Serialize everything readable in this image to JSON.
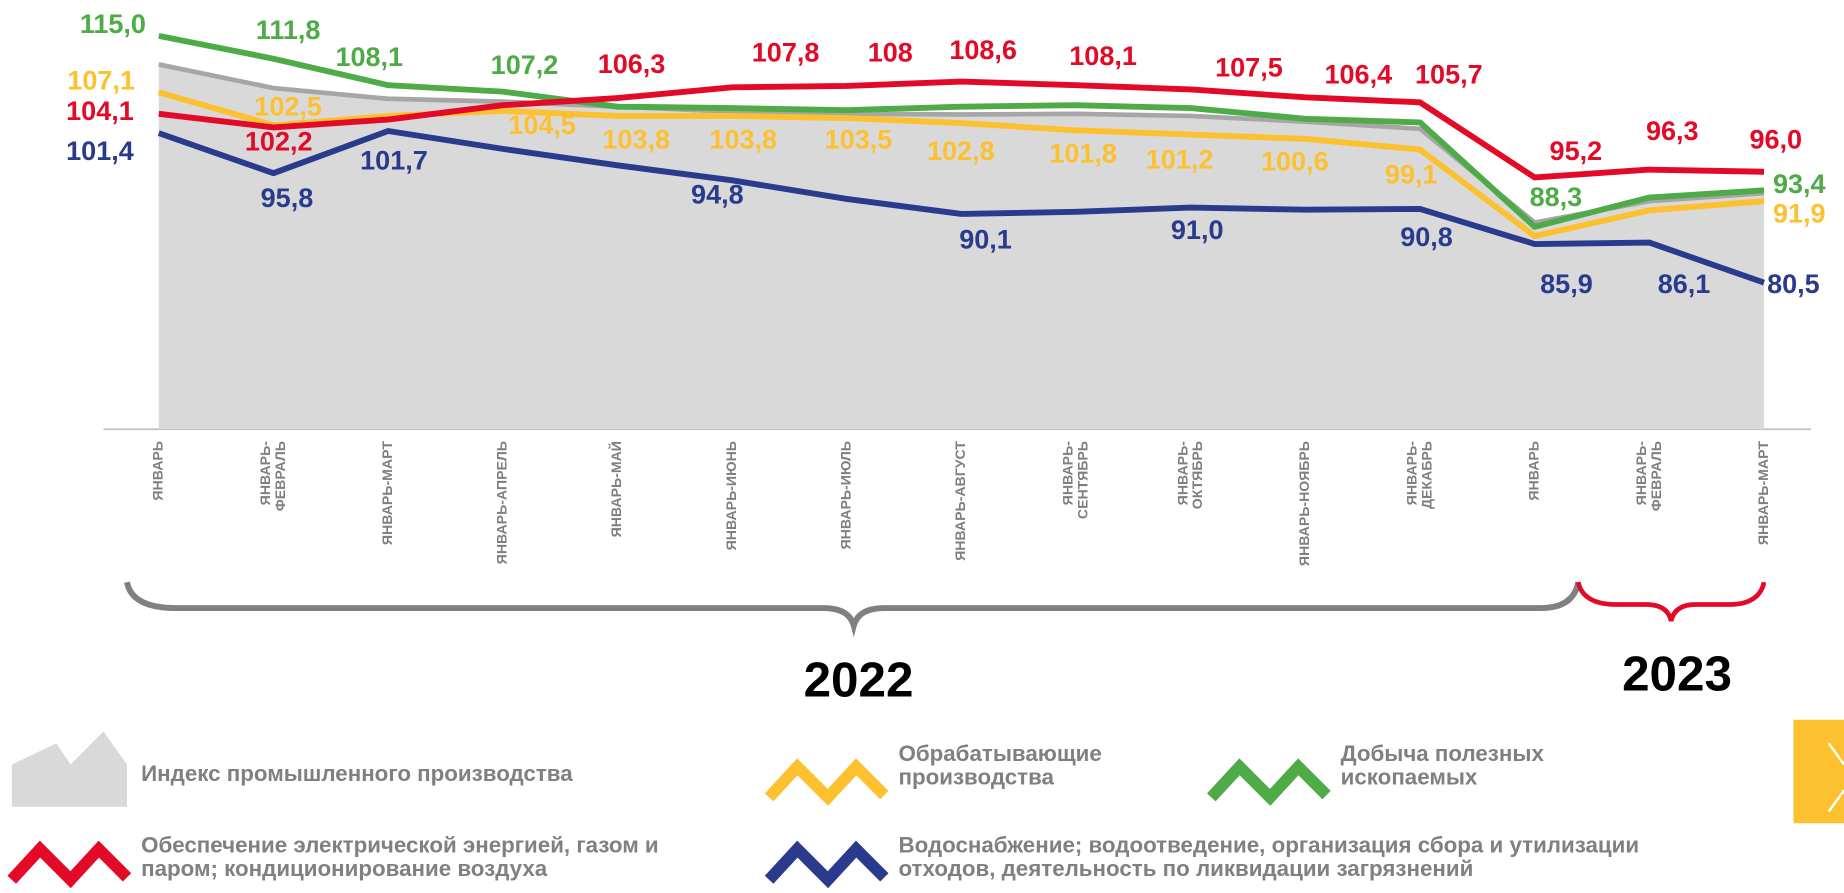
{
  "chart_data": {
    "type": "line",
    "categories": [
      "ЯНВАРЬ",
      "ЯНВАРЬ-\nФЕВРАЛЬ",
      "ЯНВАРЬ-МАРТ",
      "ЯНВАРЬ-АПРЕЛЬ",
      "ЯНВАРЬ-МАЙ",
      "ЯНВАРЬ-ИЮНЬ",
      "ЯНВАРЬ-ИЮЛЬ",
      "ЯНВАРЬ-АВГУСТ",
      "ЯНВАРЬ-\nСЕНТЯБРЬ",
      "ЯНВАРЬ-\nОКТЯБРЬ",
      "ЯНВАРЬ-НОЯБРЬ",
      "ЯНВАРЬ-\nДЕКАБРЬ",
      "ЯНВАРЬ",
      "ЯНВАРЬ-\nФЕВРАЛЬ",
      "ЯНВАРЬ-МАРТ"
    ],
    "ylim": [
      60,
      120
    ],
    "series": [
      {
        "name": "Индекс промышленного производства",
        "color": "#a6a6a6",
        "fill": "#d9d9d9",
        "values": [
          111.0,
          107.7,
          106.2,
          105.8,
          105.1,
          104.4,
          104.1,
          104.0,
          104.1,
          103.8,
          103.0,
          102.0,
          88.9,
          91.9,
          93.0
        ]
      },
      {
        "name": "Обрабатывающие\nпроизводства",
        "color": "#fdc12f",
        "values": [
          107.1,
          102.5,
          103.8,
          104.5,
          103.8,
          103.8,
          103.5,
          102.8,
          101.8,
          101.2,
          100.6,
          99.1,
          87.0,
          90.6,
          91.9
        ],
        "value_labels": [
          "107,1",
          "102,5",
          null,
          "104,5",
          "103,8",
          "103,8",
          "103,5",
          "102,8",
          "101,8",
          "101,2",
          "100,6",
          "99,1",
          null,
          null,
          "91,9"
        ]
      },
      {
        "name": "Добыча полезных\nископаемых",
        "color": "#4eab47",
        "values": [
          115.0,
          111.8,
          108.1,
          107.2,
          105.1,
          104.9,
          104.6,
          105.1,
          105.3,
          104.9,
          103.4,
          102.9,
          88.3,
          92.4,
          93.4
        ],
        "value_labels": [
          "115,0",
          "111,8",
          "108,1",
          "107,2",
          null,
          null,
          null,
          null,
          null,
          null,
          null,
          null,
          "88,3",
          null,
          "93,4"
        ]
      },
      {
        "name": "Обеспечение электрической энергией, газом и\nпаром; кондиционирование воздуха",
        "color": "#e30a27",
        "values": [
          104.1,
          102.2,
          103.3,
          105.3,
          106.3,
          107.8,
          108,
          108.6,
          108.1,
          107.5,
          106.4,
          105.7,
          95.2,
          96.3,
          96.0
        ],
        "value_labels": [
          "104,1",
          "102,2",
          null,
          null,
          "106,3",
          "107,8",
          "108",
          "108,6",
          "108,1",
          "107,5",
          "106,4",
          "105,7",
          "95,2",
          "96,3",
          "96,0"
        ]
      },
      {
        "name": "Водоснабжение; водоотведение, организация сбора и утилизации\nотходов, деятельность по ликвидации загрязнений",
        "color": "#2a3a8c",
        "values": [
          101.4,
          95.8,
          101.7,
          99.2,
          96.9,
          94.8,
          92.2,
          90.1,
          90.4,
          91.0,
          90.7,
          90.8,
          85.9,
          86.1,
          80.5
        ],
        "value_labels": [
          "101,4",
          "95,8",
          "101,7",
          null,
          null,
          "94,8",
          null,
          "90,1",
          null,
          "91,0",
          null,
          "90,8",
          "85,9",
          "86,1",
          "80,5"
        ]
      }
    ],
    "annotations": [
      {
        "text": "2022",
        "color": "#7f7f7f"
      },
      {
        "text": "2023",
        "color": "#e30a27"
      }
    ]
  }
}
